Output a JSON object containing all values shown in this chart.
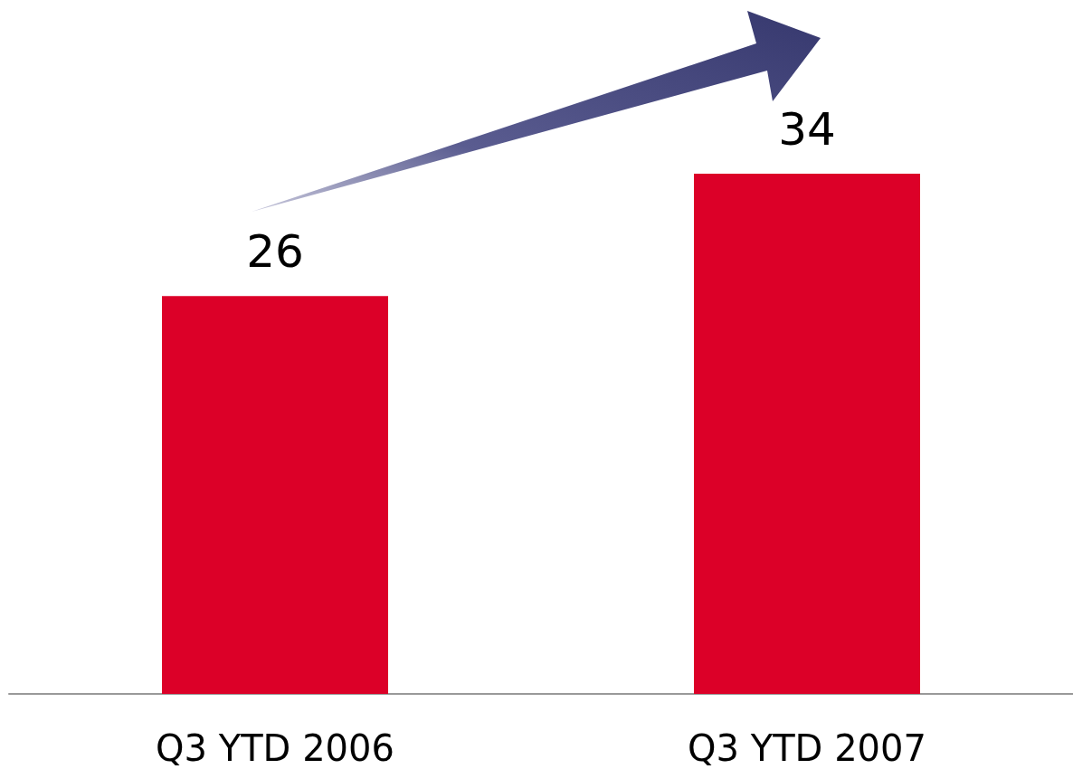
{
  "chart_data": {
    "type": "bar",
    "categories": [
      "Q3 YTD 2006",
      "Q3 YTD 2007"
    ],
    "values": [
      26,
      34
    ],
    "color": "#dc0028",
    "data_labels": true
  }
}
